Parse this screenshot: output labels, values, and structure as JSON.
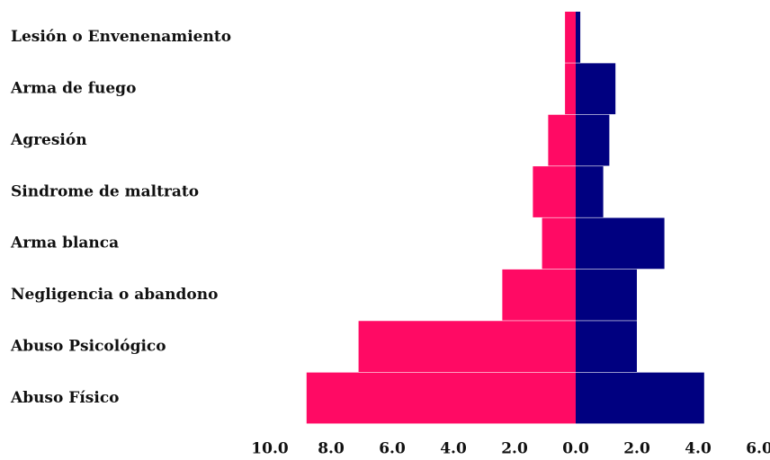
{
  "chart_data": {
    "type": "pyramid",
    "categories": [
      "Lesión o Envenenamiento",
      "Arma de fuego",
      "Agresión",
      "Sindrome de maltrato",
      "Arma blanca",
      "Negligencia o abandono",
      "Abuso Psicológico",
      "Abuso Físico"
    ],
    "series": [
      {
        "color": "#ff0a64",
        "values": [
          -0.35,
          -0.35,
          -0.9,
          -1.4,
          -1.1,
          -2.4,
          -7.1,
          -8.8
        ]
      },
      {
        "color": "#000080",
        "values": [
          0.15,
          1.3,
          1.1,
          0.9,
          2.9,
          2.0,
          2.0,
          4.2
        ]
      }
    ],
    "xlim": [
      -10,
      6
    ],
    "xticks": [
      {
        "value": -10,
        "label": "10.0"
      },
      {
        "value": -8,
        "label": "8.0"
      },
      {
        "value": -6,
        "label": "6.0"
      },
      {
        "value": -4,
        "label": "4.0"
      },
      {
        "value": -2,
        "label": "2.0"
      },
      {
        "value": 0,
        "label": "0.0"
      },
      {
        "value": 2,
        "label": "2.0"
      },
      {
        "value": 4,
        "label": "4.0"
      },
      {
        "value": 6,
        "label": "6.0"
      }
    ]
  }
}
